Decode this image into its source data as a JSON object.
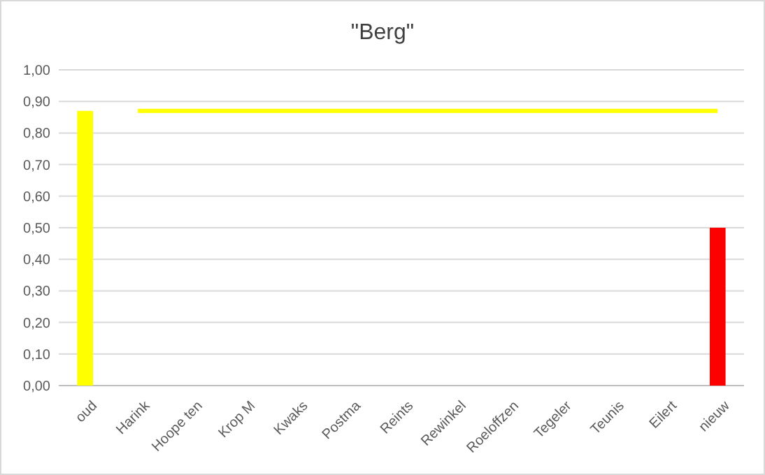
{
  "chart_data": {
    "type": "bar",
    "title": "\"Berg\"",
    "categories": [
      "oud",
      "Harink",
      "Hoope ten",
      "Krop M",
      "Kwaks",
      "Postma",
      "Reints",
      "Rewinkel",
      "Roeloffzen",
      "Tegeler",
      "Teunis",
      "Eilert",
      "nieuw"
    ],
    "series": [
      {
        "colors": [
          "#ffff00",
          null,
          null,
          null,
          null,
          null,
          null,
          null,
          null,
          null,
          null,
          null,
          "#ff0000"
        ],
        "values": [
          0.87,
          null,
          null,
          null,
          null,
          null,
          null,
          null,
          null,
          null,
          null,
          null,
          0.5
        ]
      },
      {
        "type": "line",
        "color": "#ffff00",
        "values": [
          null,
          0.87,
          0.87,
          0.87,
          0.87,
          0.87,
          0.87,
          0.87,
          0.87,
          0.87,
          0.87,
          0.87,
          0.87
        ],
        "marker": "none"
      }
    ],
    "ylim": [
      0,
      1
    ],
    "yticks": [
      {
        "value": 0,
        "label": "0,00"
      },
      {
        "value": 0.1,
        "label": "0,10"
      },
      {
        "value": 0.2,
        "label": "0,20"
      },
      {
        "value": 0.3,
        "label": "0,30"
      },
      {
        "value": 0.4,
        "label": "0,40"
      },
      {
        "value": 0.5,
        "label": "0,50"
      },
      {
        "value": 0.6,
        "label": "0,60"
      },
      {
        "value": 0.7,
        "label": "0,70"
      },
      {
        "value": 0.8,
        "label": "0,80"
      },
      {
        "value": 0.9,
        "label": "0,90"
      },
      {
        "value": 1,
        "label": "1,00"
      }
    ],
    "grid": "y"
  }
}
